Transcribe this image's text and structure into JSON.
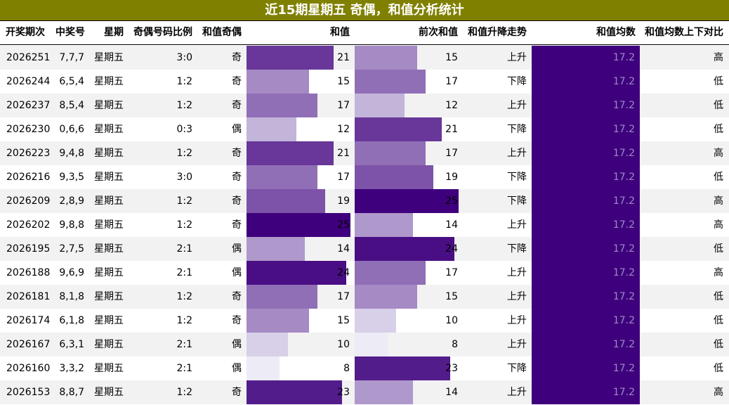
{
  "title": "近15期星期五 奇偶，和值分析统计",
  "headers": {
    "issue": "开奖期次",
    "numbers": "中奖号",
    "weekday": "星期",
    "ratio": "奇偶号码比例",
    "parity": "和值奇偶",
    "sum": "和值",
    "prev_sum": "前次和值",
    "trend": "和值升降走势",
    "avg": "和值均数",
    "compare": "和值均数上下对比"
  },
  "colors": {
    "title_bg": "#808000",
    "title_fg": "#ffffff",
    "bar_max": "#3f007d",
    "bar_min": "#ecebf6",
    "avg_bar": "#3f007d"
  },
  "scale": {
    "sum_max": 25
  },
  "rows": [
    {
      "issue": "2026251",
      "numbers": "7,7,7",
      "weekday": "星期五",
      "ratio": "3:0",
      "parity": "奇",
      "sum": 21,
      "prev_sum": 15,
      "trend": "上升",
      "avg": "17.2",
      "compare": "高"
    },
    {
      "issue": "2026244",
      "numbers": "6,5,4",
      "weekday": "星期五",
      "ratio": "1:2",
      "parity": "奇",
      "sum": 15,
      "prev_sum": 17,
      "trend": "下降",
      "avg": "17.2",
      "compare": "低"
    },
    {
      "issue": "2026237",
      "numbers": "8,5,4",
      "weekday": "星期五",
      "ratio": "1:2",
      "parity": "奇",
      "sum": 17,
      "prev_sum": 12,
      "trend": "上升",
      "avg": "17.2",
      "compare": "低"
    },
    {
      "issue": "2026230",
      "numbers": "0,6,6",
      "weekday": "星期五",
      "ratio": "0:3",
      "parity": "偶",
      "sum": 12,
      "prev_sum": 21,
      "trend": "下降",
      "avg": "17.2",
      "compare": "低"
    },
    {
      "issue": "2026223",
      "numbers": "9,4,8",
      "weekday": "星期五",
      "ratio": "1:2",
      "parity": "奇",
      "sum": 21,
      "prev_sum": 17,
      "trend": "上升",
      "avg": "17.2",
      "compare": "高"
    },
    {
      "issue": "2026216",
      "numbers": "9,3,5",
      "weekday": "星期五",
      "ratio": "3:0",
      "parity": "奇",
      "sum": 17,
      "prev_sum": 19,
      "trend": "下降",
      "avg": "17.2",
      "compare": "低"
    },
    {
      "issue": "2026209",
      "numbers": "2,8,9",
      "weekday": "星期五",
      "ratio": "1:2",
      "parity": "奇",
      "sum": 19,
      "prev_sum": 25,
      "trend": "下降",
      "avg": "17.2",
      "compare": "高"
    },
    {
      "issue": "2026202",
      "numbers": "9,8,8",
      "weekday": "星期五",
      "ratio": "1:2",
      "parity": "奇",
      "sum": 25,
      "prev_sum": 14,
      "trend": "上升",
      "avg": "17.2",
      "compare": "高"
    },
    {
      "issue": "2026195",
      "numbers": "2,7,5",
      "weekday": "星期五",
      "ratio": "2:1",
      "parity": "偶",
      "sum": 14,
      "prev_sum": 24,
      "trend": "下降",
      "avg": "17.2",
      "compare": "低"
    },
    {
      "issue": "2026188",
      "numbers": "9,6,9",
      "weekday": "星期五",
      "ratio": "2:1",
      "parity": "偶",
      "sum": 24,
      "prev_sum": 17,
      "trend": "上升",
      "avg": "17.2",
      "compare": "高"
    },
    {
      "issue": "2026181",
      "numbers": "8,1,8",
      "weekday": "星期五",
      "ratio": "1:2",
      "parity": "奇",
      "sum": 17,
      "prev_sum": 15,
      "trend": "上升",
      "avg": "17.2",
      "compare": "低"
    },
    {
      "issue": "2026174",
      "numbers": "6,1,8",
      "weekday": "星期五",
      "ratio": "1:2",
      "parity": "奇",
      "sum": 15,
      "prev_sum": 10,
      "trend": "上升",
      "avg": "17.2",
      "compare": "低"
    },
    {
      "issue": "2026167",
      "numbers": "6,3,1",
      "weekday": "星期五",
      "ratio": "2:1",
      "parity": "偶",
      "sum": 10,
      "prev_sum": 8,
      "trend": "上升",
      "avg": "17.2",
      "compare": "低"
    },
    {
      "issue": "2026160",
      "numbers": "3,3,2",
      "weekday": "星期五",
      "ratio": "2:1",
      "parity": "偶",
      "sum": 8,
      "prev_sum": 23,
      "trend": "下降",
      "avg": "17.2",
      "compare": "低"
    },
    {
      "issue": "2026153",
      "numbers": "8,8,7",
      "weekday": "星期五",
      "ratio": "1:2",
      "parity": "奇",
      "sum": 23,
      "prev_sum": 14,
      "trend": "上升",
      "avg": "17.2",
      "compare": "高"
    }
  ]
}
